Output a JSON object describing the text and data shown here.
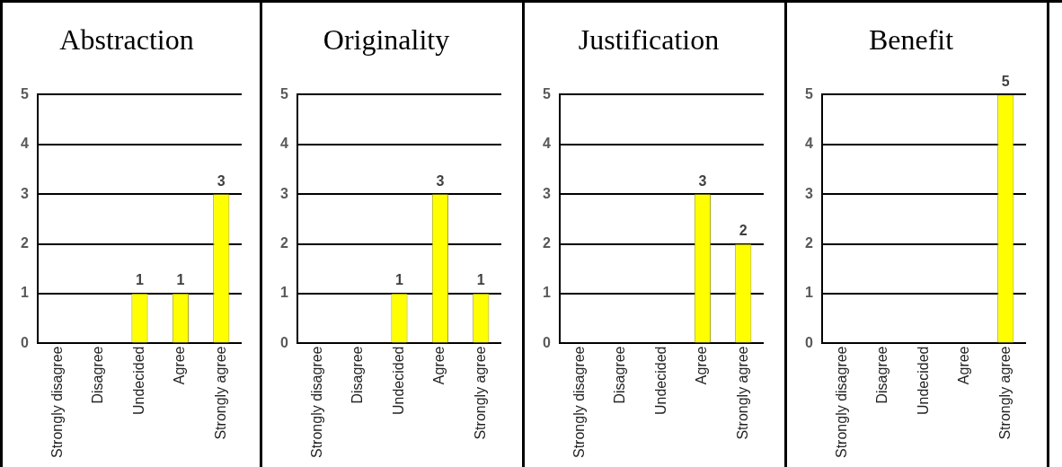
{
  "chart_data": [
    {
      "type": "bar",
      "title": "Abstraction",
      "categories": [
        "Strongly disagree",
        "Disagree",
        "Undecided",
        "Agree",
        "Strongly agree"
      ],
      "values": [
        0,
        0,
        1,
        1,
        3
      ],
      "value_labels": [
        null,
        null,
        "1",
        "1",
        "3"
      ],
      "color": "#ffff00",
      "ylim": [
        0,
        5
      ],
      "yticks": [
        0,
        1,
        2,
        3,
        4,
        5
      ],
      "grid": "y"
    },
    {
      "type": "bar",
      "title": "Originality",
      "categories": [
        "Strongly disagree",
        "Disagree",
        "Undecided",
        "Agree",
        "Strongly agree"
      ],
      "values": [
        0,
        0,
        1,
        3,
        1
      ],
      "value_labels": [
        null,
        null,
        "1",
        "3",
        "1"
      ],
      "color": "#ffff00",
      "ylim": [
        0,
        5
      ],
      "yticks": [
        0,
        1,
        2,
        3,
        4,
        5
      ],
      "grid": "y"
    },
    {
      "type": "bar",
      "title": "Justification",
      "categories": [
        "Strongly disagree",
        "Disagree",
        "Undecided",
        "Agree",
        "Strongly agree"
      ],
      "values": [
        0,
        0,
        0,
        3,
        2
      ],
      "value_labels": [
        null,
        null,
        null,
        "3",
        "2"
      ],
      "color": "#ffff00",
      "ylim": [
        0,
        5
      ],
      "yticks": [
        0,
        1,
        2,
        3,
        4,
        5
      ],
      "grid": "y"
    },
    {
      "type": "bar",
      "title": "Benefit",
      "categories": [
        "Strongly disagree",
        "Disagree",
        "Undecided",
        "Agree",
        "Strongly agree"
      ],
      "values": [
        0,
        0,
        0,
        0,
        5
      ],
      "value_labels": [
        null,
        null,
        null,
        null,
        "5"
      ],
      "color": "#ffff00",
      "ylim": [
        0,
        5
      ],
      "yticks": [
        0,
        1,
        2,
        3,
        4,
        5
      ],
      "grid": "y"
    }
  ]
}
